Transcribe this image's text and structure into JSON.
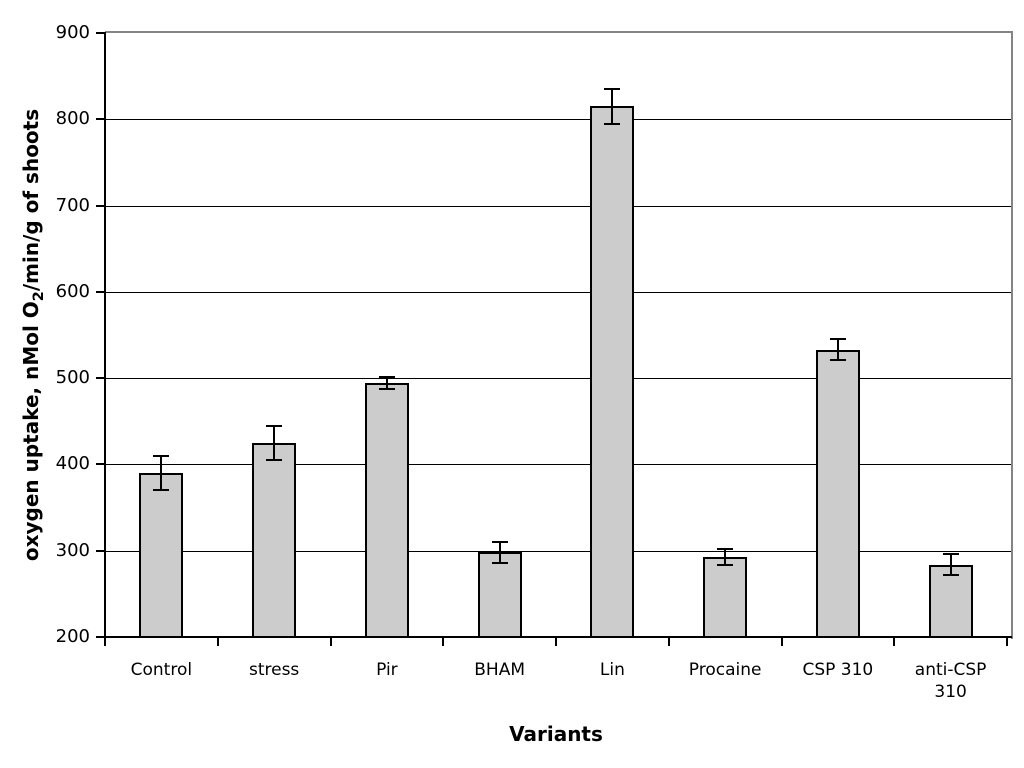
{
  "figure": {
    "background": "#FFFFFF",
    "bar_fill": "#CCCCCC",
    "bar_border": "#000000",
    "gridline_color": "#000000",
    "frame_color": "#848484",
    "axis_color": "#000000"
  },
  "chart_data": {
    "type": "bar",
    "title": "",
    "xlabel": "Variants",
    "ylabel": "oxygen uptake, nMol O₂/min/g of shoots",
    "ylabel_parts": {
      "prefix": "oxygen uptake, nMol O",
      "sub": "2",
      "suffix": "/min/g of shoots"
    },
    "categories": [
      "Control",
      "stress",
      "Pir",
      "BHAM",
      "Lin",
      "Procaine",
      "CSP 310",
      "anti-CSP 310"
    ],
    "values": [
      390,
      425,
      494,
      298,
      815,
      293,
      533,
      284
    ],
    "errors": [
      20,
      20,
      7,
      12,
      20,
      9,
      12,
      12
    ],
    "ylim": [
      200,
      900
    ],
    "ytick_step": 100,
    "yticks": [
      200,
      300,
      400,
      500,
      600,
      700,
      800,
      900
    ],
    "grid": true,
    "legend": false,
    "error_bars": true
  }
}
